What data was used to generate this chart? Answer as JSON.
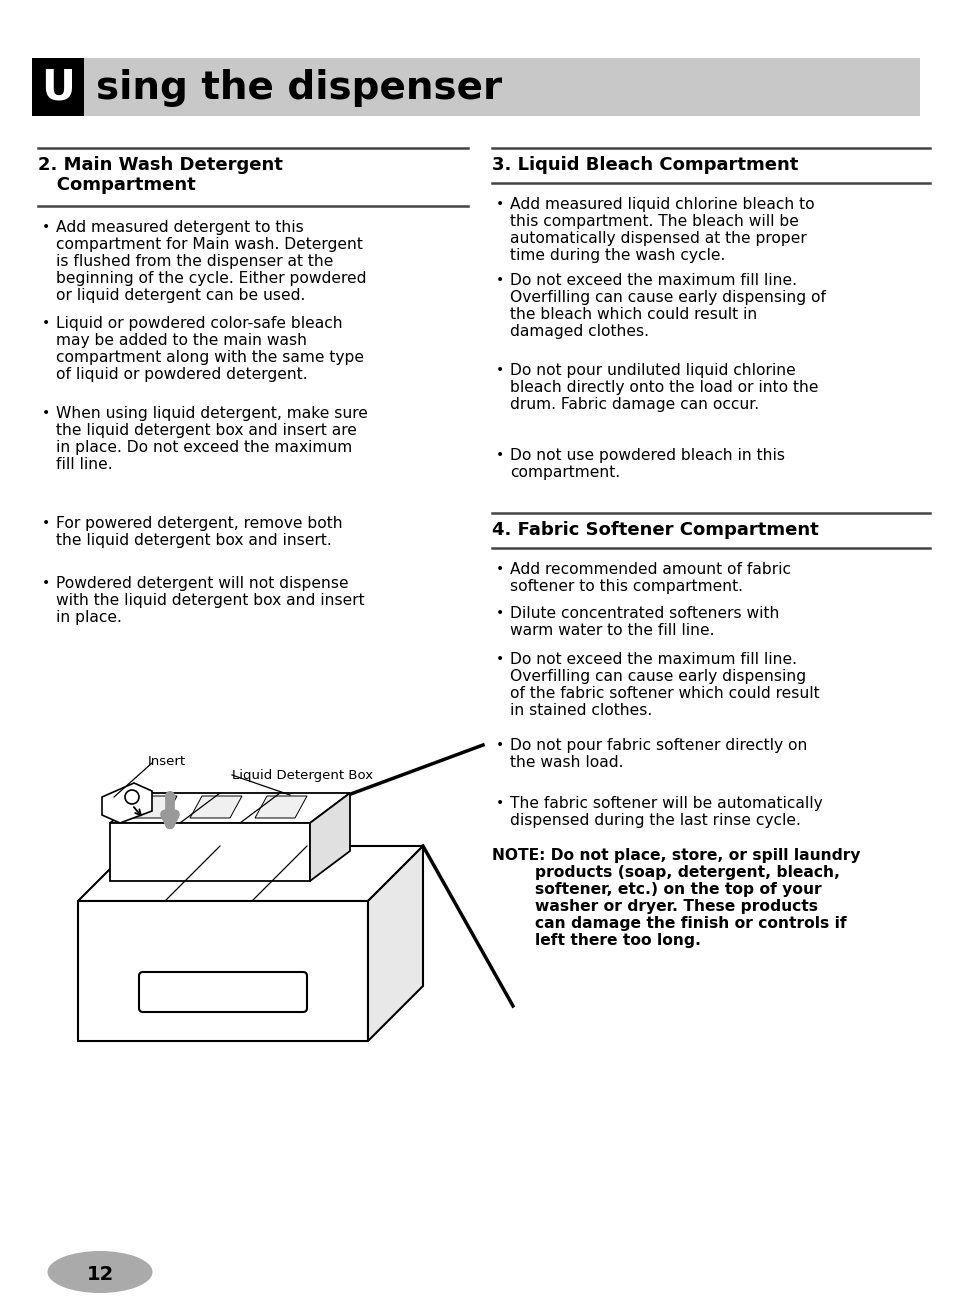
{
  "title_text": "sing the dispenser",
  "title_letter": "U",
  "bg_color": "#ffffff",
  "header_bg": "#c8c8c8",
  "section2_title1": "2. Main Wash Detergent",
  "section2_title2": "   Compartment",
  "section3_title": "3. Liquid Bleach Compartment",
  "section4_title": "4. Fabric Softener Compartment",
  "section2_bullets": [
    "Add measured detergent to this\ncompartment for Main wash. Detergent\nis flushed from the dispenser at the\nbeginning of the cycle. Either powdered\nor liquid detergent can be used.",
    "Liquid or powdered color-safe bleach\nmay be added to the main wash\ncompartment along with the same type\nof liquid or powdered detergent.",
    "When using liquid detergent, make sure\nthe liquid detergent box and insert are\nin place. Do not exceed the maximum\nfill line.",
    "For powered detergent, remove both\nthe liquid detergent box and insert.",
    "Powdered detergent will not dispense\nwith the liquid detergent box and insert\nin place."
  ],
  "section3_bullets": [
    "Add measured liquid chlorine bleach to\nthis compartment. The bleach will be\nautomatically dispensed at the proper\ntime during the wash cycle.",
    "Do not exceed the maximum fill line.\nOverfilling can cause early dispensing of\nthe bleach which could result in\ndamaged clothes.",
    "Do not pour undiluted liquid chlorine\nbleach directly onto the load or into the\ndrum. Fabric damage can occur.",
    "Do not use powdered bleach in this\ncompartment."
  ],
  "section4_bullets": [
    "Add recommended amount of fabric\nsoftener to this compartment.",
    "Dilute concentrated softeners with\nwarm water to the fill line.",
    "Do not exceed the maximum fill line.\nOverfilling can cause early dispensing\nof the fabric softener which could result\nin stained clothes.",
    "Do not pour fabric softener directly on\nthe wash load.",
    "The fabric softener will be automatically\ndispensed during the last rinse cycle."
  ],
  "note_line1": "NOTE: Do not place, store, or spill laundry",
  "note_line2": "        products (soap, detergent, bleach,",
  "note_line3": "        softener, etc.) on the top of your",
  "note_line4": "        washer or dryer. These products",
  "note_line5": "        can damage the finish or controls if",
  "note_line6": "        left there too long.",
  "page_number": "12",
  "insert_label": "Insert",
  "liquid_box_label": "Liquid Detergent Box"
}
